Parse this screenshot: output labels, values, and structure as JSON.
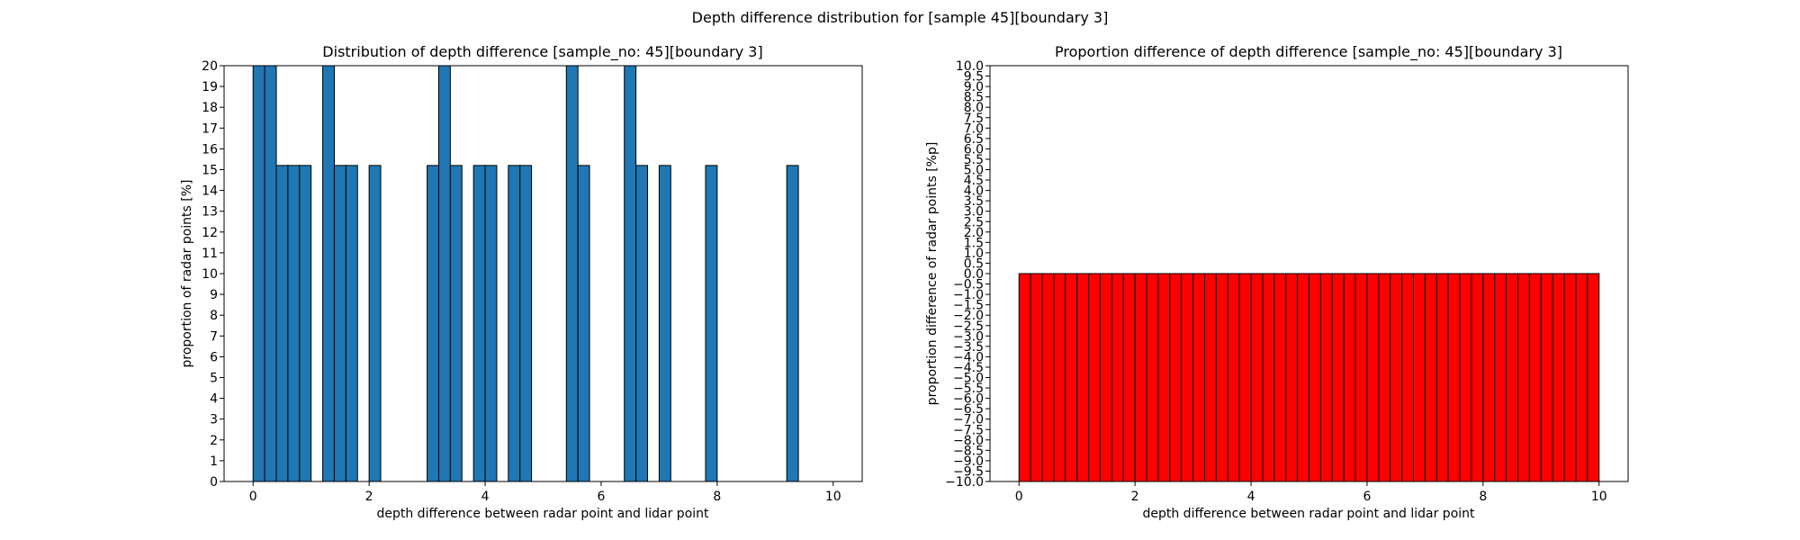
{
  "figure": {
    "suptitle": "Depth difference distribution for [sample 45][boundary 3]"
  },
  "colors": {
    "left_bar": "#1f77b4",
    "right_bar": "#ff0000",
    "edge": "#000000"
  },
  "chart_data": [
    {
      "type": "bar",
      "title": "Distribution of depth difference [sample_no: 45][boundary 3]",
      "xlabel": "depth difference between radar point and lidar point",
      "ylabel": "proportion of radar points [%]",
      "xlim": [
        -0.5,
        10.5
      ],
      "ylim": [
        0,
        20
      ],
      "xticks": [
        0,
        2,
        4,
        6,
        8,
        10
      ],
      "xtick_labels": [
        "0",
        "2",
        "4",
        "6",
        "8",
        "10"
      ],
      "yticks": [
        0,
        1,
        2,
        3,
        4,
        5,
        6,
        7,
        8,
        9,
        10,
        11,
        12,
        13,
        14,
        15,
        16,
        17,
        18,
        19,
        20
      ],
      "ytick_labels": [
        "0",
        "1",
        "2",
        "3",
        "4",
        "5",
        "6",
        "7",
        "8",
        "9",
        "10",
        "11",
        "12",
        "13",
        "14",
        "15",
        "16",
        "17",
        "18",
        "19",
        "20"
      ],
      "bin_width": 0.2,
      "bins": [
        {
          "x0": 0.0,
          "value": 20
        },
        {
          "x0": 0.2,
          "value": 20
        },
        {
          "x0": 0.4,
          "value": 15.2
        },
        {
          "x0": 0.6,
          "value": 15.2
        },
        {
          "x0": 0.8,
          "value": 15.2
        },
        {
          "x0": 1.2,
          "value": 20
        },
        {
          "x0": 1.4,
          "value": 15.2
        },
        {
          "x0": 1.6,
          "value": 15.2
        },
        {
          "x0": 2.0,
          "value": 15.2
        },
        {
          "x0": 3.0,
          "value": 15.2
        },
        {
          "x0": 3.2,
          "value": 20
        },
        {
          "x0": 3.4,
          "value": 15.2
        },
        {
          "x0": 3.8,
          "value": 15.2
        },
        {
          "x0": 4.0,
          "value": 15.2
        },
        {
          "x0": 4.4,
          "value": 15.2
        },
        {
          "x0": 4.6,
          "value": 15.2
        },
        {
          "x0": 5.4,
          "value": 20
        },
        {
          "x0": 5.6,
          "value": 15.2
        },
        {
          "x0": 6.4,
          "value": 20
        },
        {
          "x0": 6.6,
          "value": 15.2
        },
        {
          "x0": 7.0,
          "value": 15.2
        },
        {
          "x0": 7.8,
          "value": 15.2
        },
        {
          "x0": 9.2,
          "value": 15.2
        }
      ]
    },
    {
      "type": "bar",
      "title": "Proportion difference of depth difference [sample_no: 45][boundary 3]",
      "xlabel": "depth difference between radar point and lidar point",
      "ylabel": "proportion difference of radar points [%p]",
      "xlim": [
        -0.5,
        10.5
      ],
      "ylim": [
        -10,
        10
      ],
      "xticks": [
        0,
        2,
        4,
        6,
        8,
        10
      ],
      "xtick_labels": [
        "0",
        "2",
        "4",
        "6",
        "8",
        "10"
      ],
      "yticks": [
        -10,
        -9.5,
        -9,
        -8.5,
        -8,
        -7.5,
        -7,
        -6.5,
        -6,
        -5.5,
        -5,
        -4.5,
        -4,
        -3.5,
        -3,
        -2.5,
        -2,
        -1.5,
        -1,
        -0.5,
        0,
        0.5,
        1,
        1.5,
        2,
        2.5,
        3,
        3.5,
        4,
        4.5,
        5,
        5.5,
        6,
        6.5,
        7,
        7.5,
        8,
        8.5,
        9,
        9.5,
        10
      ],
      "ytick_labels": [
        "−10.0",
        "−9.5",
        "−9.0",
        "−8.5",
        "−8.0",
        "−7.5",
        "−7.0",
        "−6.5",
        "−6.0",
        "−5.5",
        "−5.0",
        "−4.5",
        "−4.0",
        "−3.5",
        "−3.0",
        "−2.5",
        "−2.0",
        "−1.5",
        "−1.0",
        "−0.5",
        "0.0",
        "0.5",
        "1.0",
        "1.5",
        "2.0",
        "2.5",
        "3.0",
        "3.5",
        "4.0",
        "4.5",
        "5.0",
        "5.5",
        "6.0",
        "6.5",
        "7.0",
        "7.5",
        "8.0",
        "8.5",
        "9.0",
        "9.5",
        "10.0"
      ],
      "bin_width": 0.2,
      "bar_range": [
        0,
        10
      ],
      "bar_bottom": -10,
      "bar_top": 0
    }
  ]
}
